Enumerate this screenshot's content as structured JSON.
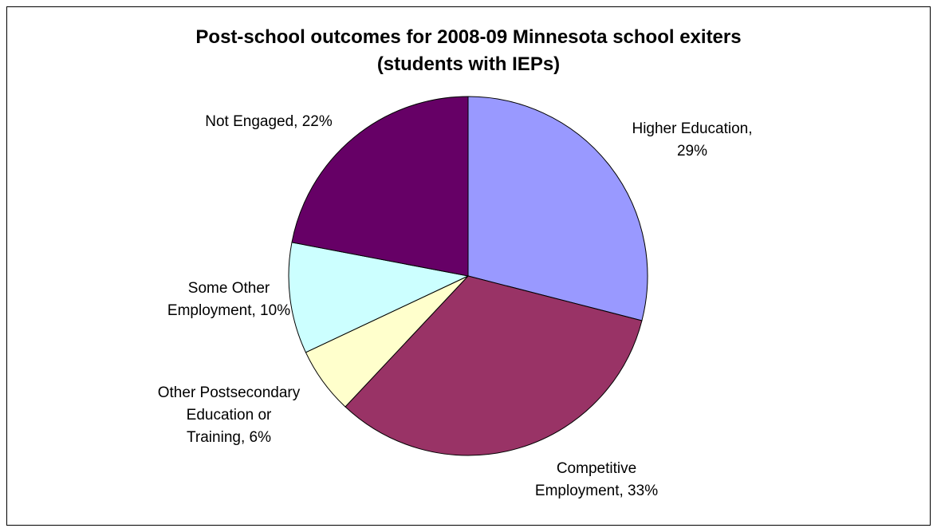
{
  "chart_data": {
    "type": "pie",
    "title_lines": [
      "Post-school outcomes for 2008-09 Minnesota school exiters",
      "(students with IEPs)"
    ],
    "slices": [
      {
        "name": "Higher Education",
        "value": 29,
        "color": "#9999FF",
        "label_lines": [
          "Higher Education,",
          "29%"
        ]
      },
      {
        "name": "Competitive Employment",
        "value": 33,
        "color": "#993366",
        "label_lines": [
          "Competitive",
          "Employment, 33%"
        ]
      },
      {
        "name": "Other Postsecondary Education or Training",
        "value": 6,
        "color": "#FFFFCC",
        "label_lines": [
          "Other Postsecondary",
          "Education or",
          "Training, 6%"
        ]
      },
      {
        "name": "Some Other Employment",
        "value": 10,
        "color": "#CCFFFF",
        "label_lines": [
          "Some Other",
          "Employment, 10%"
        ]
      },
      {
        "name": "Not Engaged",
        "value": 22,
        "color": "#660066",
        "label_lines": [
          "Not Engaged, 22%"
        ]
      }
    ],
    "start": "12 o'clock",
    "direction": "clockwise",
    "legend": "none"
  }
}
